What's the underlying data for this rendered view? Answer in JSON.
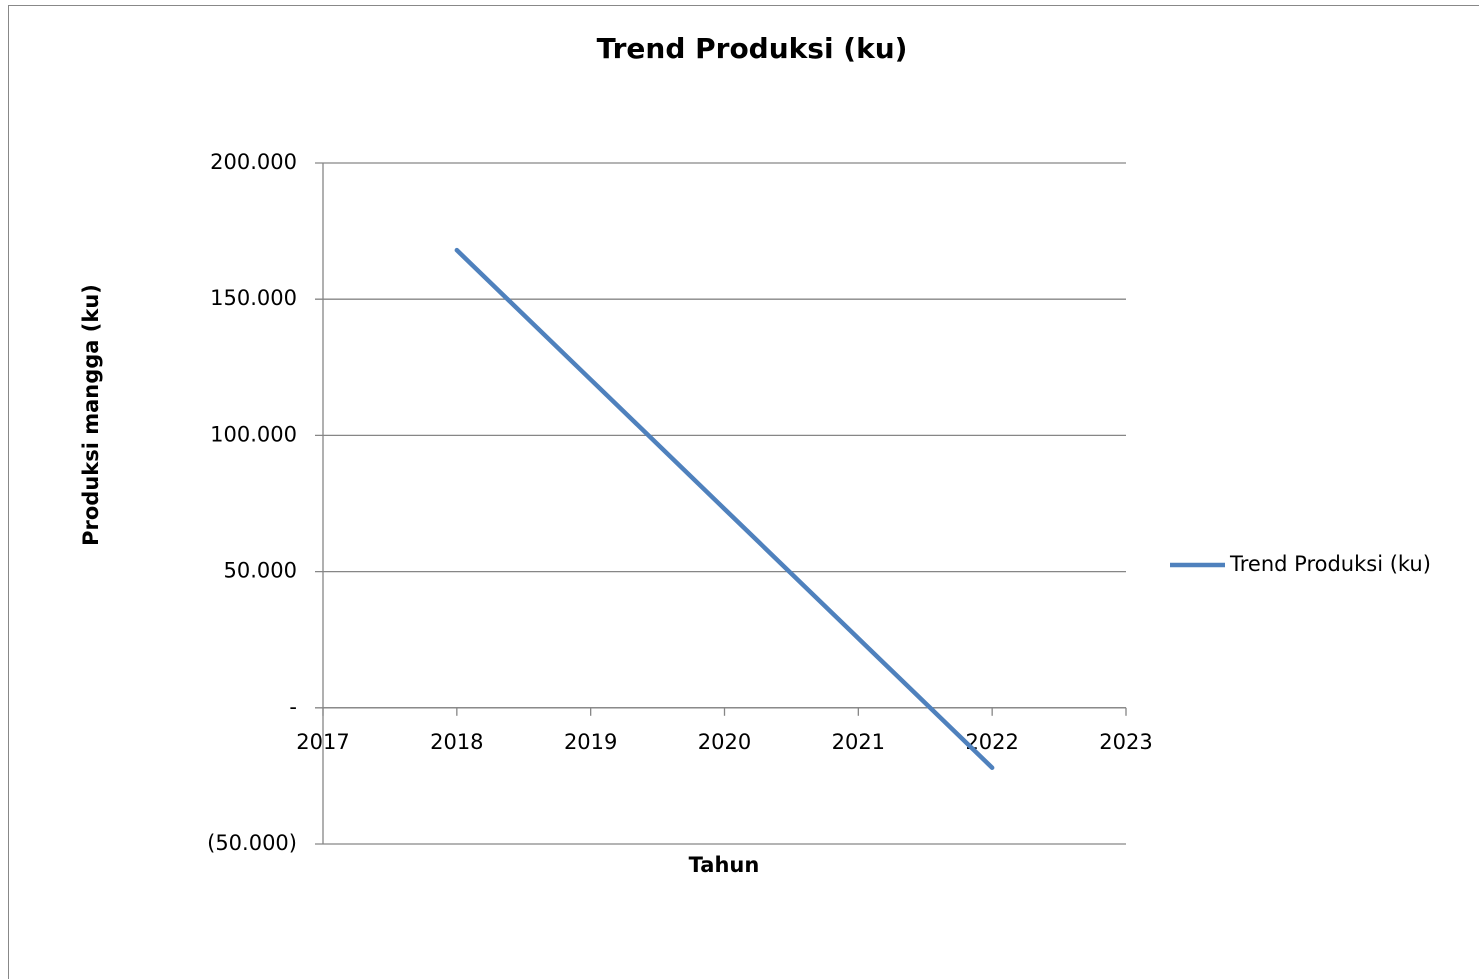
{
  "chart_data": {
    "type": "line",
    "title": "Trend Produksi (ku)",
    "x_label": "Tahun",
    "y_label": "Produksi mangga (ku)",
    "x": [
      2018,
      2019,
      2020,
      2021,
      2022
    ],
    "series": [
      {
        "name": "Trend Produksi (ku)",
        "color": "#4f81bd",
        "values": [
          168000,
          120500,
          73000,
          25500,
          -22000
        ]
      }
    ],
    "xlim": [
      2017,
      2023
    ],
    "xticks": [
      2017,
      2018,
      2019,
      2020,
      2021,
      2022,
      2023
    ],
    "ylim": [
      -50000,
      200000
    ],
    "yticks": [
      {
        "value": -50000,
        "label": "(50.000)"
      },
      {
        "value": 0,
        "label": "-"
      },
      {
        "value": 50000,
        "label": "50.000"
      },
      {
        "value": 100000,
        "label": "100.000"
      },
      {
        "value": 150000,
        "label": "150.000"
      },
      {
        "value": 200000,
        "label": "200.000"
      }
    ],
    "grid": true,
    "legend": "right"
  }
}
